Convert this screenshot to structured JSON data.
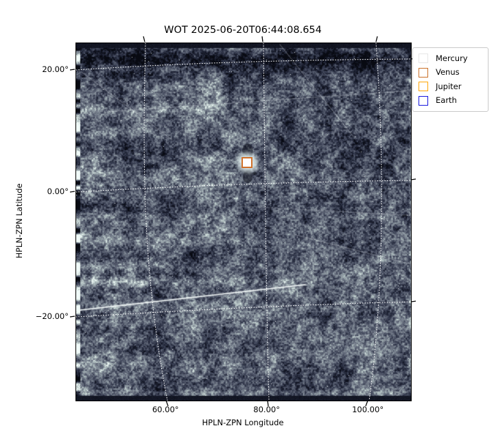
{
  "chart_data": {
    "type": "heatmap",
    "title": "WOT 2025-06-20T06:44:08.654",
    "xlabel": "HPLN-ZPN Longitude",
    "ylabel": "HPLN-ZPN Latitude",
    "x_ticks": [
      {
        "value": 60,
        "label": "60.00°"
      },
      {
        "value": 80,
        "label": "80.00°"
      },
      {
        "value": 100,
        "label": "100.00°"
      }
    ],
    "y_ticks": [
      {
        "value": 20,
        "label": "20.00°"
      },
      {
        "value": 0,
        "label": "0.00°"
      },
      {
        "value": -20,
        "label": "−20.00°"
      }
    ],
    "xlim": [
      42.2,
      108.4
    ],
    "ylim": [
      -34.2,
      24.4
    ],
    "grid": {
      "visible": true,
      "style": "dotted",
      "color": "#ffffff",
      "projection": "curved WCS ZPN"
    },
    "image": {
      "description": "noisy slate-blue heliospheric imager frame: horizontal striations strongest at left, faint star field, several faint satellite streaks, one bright solid streak rising from lower-left to center, dark detector bands at top and bottom, bright patchy left edge, dark vignetted rounded corners",
      "palette": [
        "#0a0d16",
        "#232939",
        "#4e5568",
        "#5c6374",
        "#8e99a4",
        "#b9c9c9",
        "#eef8f6"
      ]
    },
    "markers": [
      {
        "name": "Venus",
        "lon": 76.1,
        "lat": 4.8,
        "shape": "square-outline",
        "edge_color": "#cf7029",
        "center": "saturated white"
      }
    ],
    "legend": {
      "position": "upper-right outside axes",
      "border_color": "#c9c9c9",
      "entries": [
        {
          "label": "Mercury",
          "color": "#e6e6e6"
        },
        {
          "label": "Venus",
          "color": "#c96f26"
        },
        {
          "label": "Jupiter",
          "color": "#ffa502"
        },
        {
          "label": "Earth",
          "color": "#1414dd"
        }
      ]
    }
  }
}
